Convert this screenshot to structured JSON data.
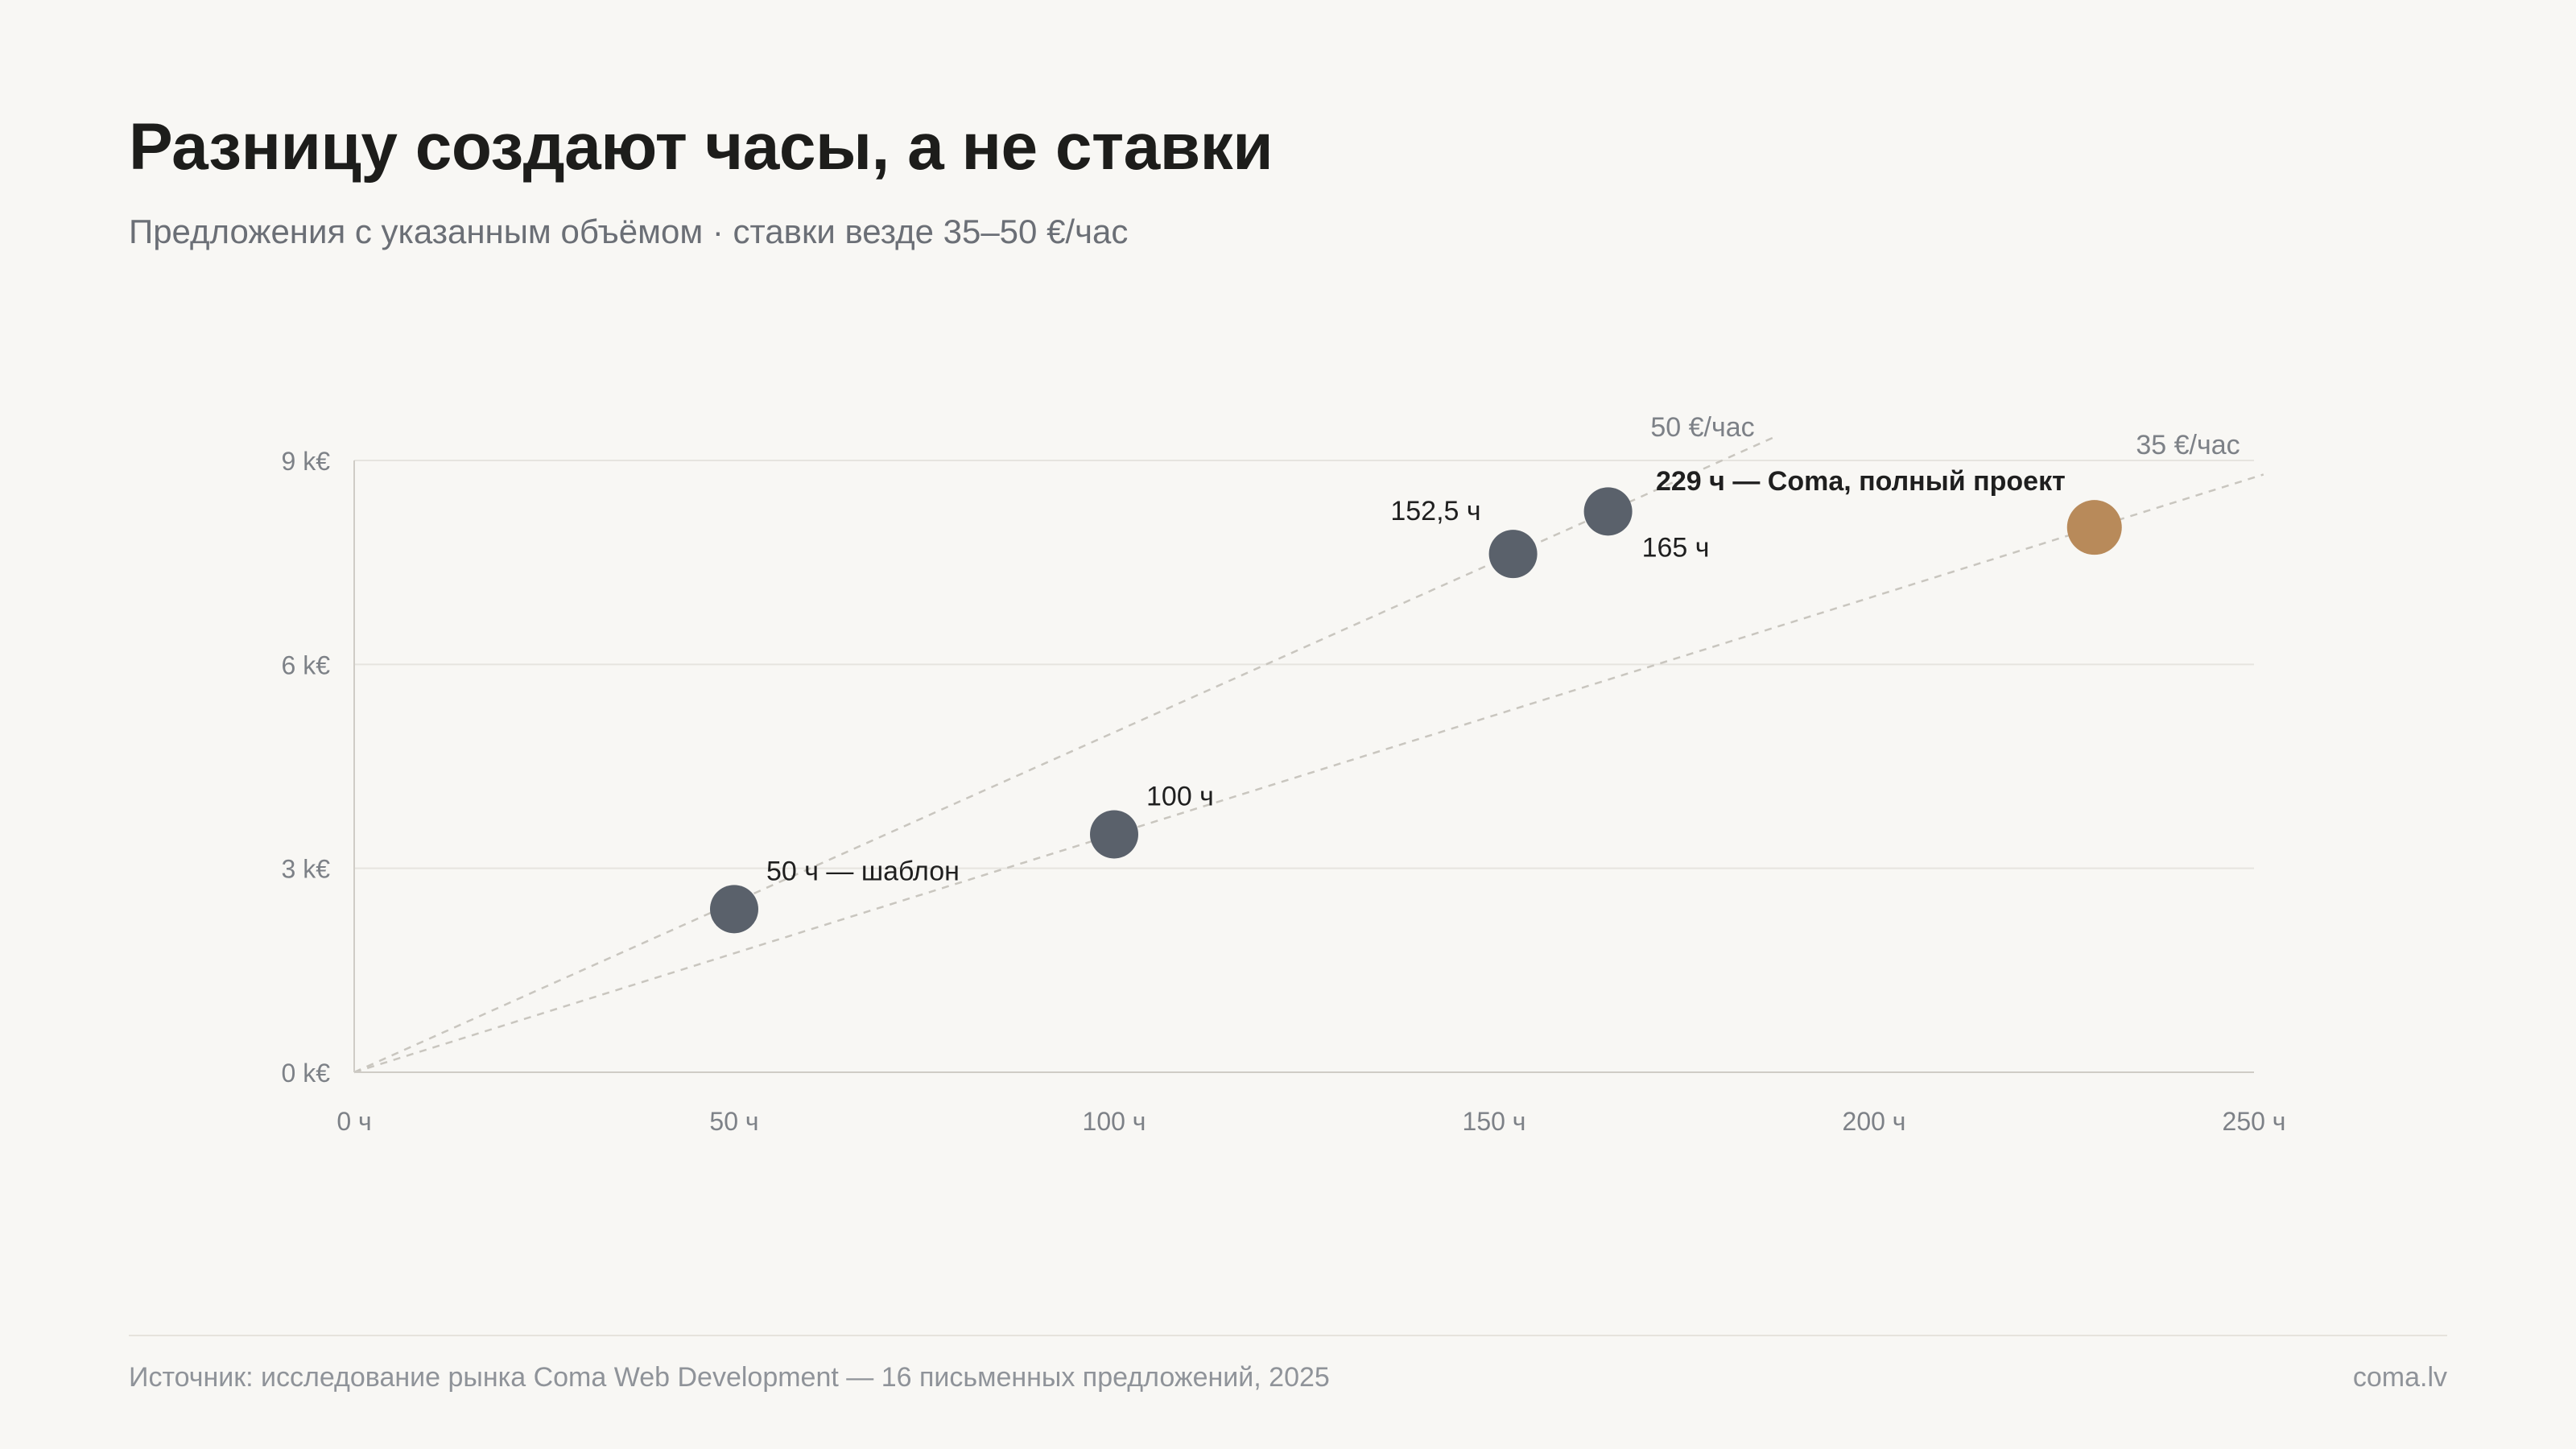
{
  "header": {
    "title": "Разницу создают часы, а не ставки",
    "subtitle": "Предложения с указанным объёмом · ставки везде 35–50 €/час"
  },
  "footer": {
    "source": "Источник: исследование рынка Coma Web Development — 16 письменных предложений, 2025",
    "site": "coma.lv"
  },
  "colors": {
    "point": "#5a616b",
    "highlight": "#b88a5a",
    "grid": "#e6e4df",
    "axis": "#cfccc6",
    "tick_text": "#7d8187",
    "label_text": "#1f1f1f",
    "rate_line": "#c9c6bf"
  },
  "chart_data": {
    "type": "scatter",
    "xlim": [
      0,
      250
    ],
    "ylim": [
      0,
      9000
    ],
    "x_ticks": [
      0,
      50,
      100,
      150,
      200,
      250
    ],
    "x_tick_labels": [
      "0 ч",
      "50 ч",
      "100 ч",
      "150 ч",
      "200 ч",
      "250 ч"
    ],
    "y_ticks": [
      0,
      3000,
      6000,
      9000
    ],
    "y_tick_labels": [
      "0 k€",
      "3 k€",
      "6 k€",
      "9 k€"
    ],
    "grid": "horizontal",
    "points": [
      {
        "x": 50,
        "y": 2400,
        "label": "50 ч — шаблон",
        "highlight": false
      },
      {
        "x": 100,
        "y": 3500,
        "label": "100 ч",
        "highlight": false
      },
      {
        "x": 152.5,
        "y": 7625,
        "label": "152,5 ч",
        "highlight": false
      },
      {
        "x": 165,
        "y": 8250,
        "label": "165 ч",
        "highlight": false
      },
      {
        "x": 229,
        "y": 8015,
        "label": "229 ч — Coma, полный проект",
        "highlight": true
      }
    ],
    "rate_lines": [
      {
        "rate": 50,
        "label": "50 €/час"
      },
      {
        "rate": 35,
        "label": "35 €/час"
      }
    ]
  }
}
